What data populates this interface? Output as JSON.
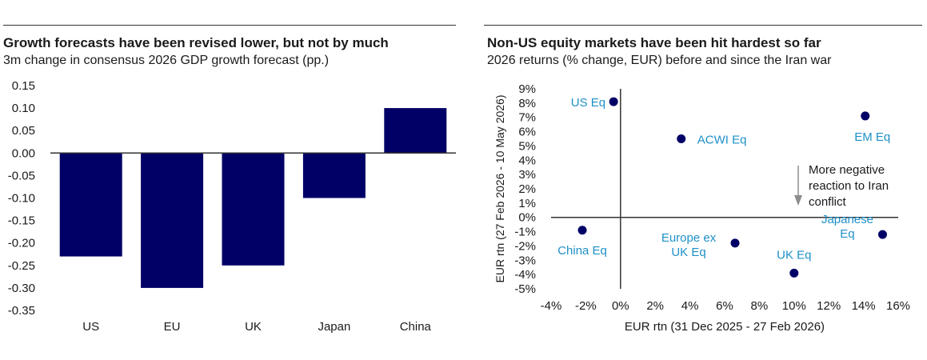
{
  "colors": {
    "bar": "#000066",
    "dot": "#000066",
    "label_blue": "#1e90c8",
    "axis": "#333333",
    "arrow": "#8c8c8c"
  },
  "chart_data": [
    {
      "type": "bar",
      "title": "Growth forecasts have been revised lower, but not by much",
      "subtitle": "3m change in consensus 2026 GDP growth forecast (pp.)",
      "categories": [
        "US",
        "EU",
        "UK",
        "Japan",
        "China"
      ],
      "values": [
        -0.23,
        -0.3,
        -0.25,
        -0.1,
        0.1
      ],
      "ylim": [
        -0.35,
        0.15
      ],
      "yticks": [
        "0.15",
        "0.10",
        "0.05",
        "0.00",
        "-0.05",
        "-0.10",
        "-0.15",
        "-0.20",
        "-0.25",
        "-0.30",
        "-0.35"
      ],
      "ytick_values": [
        0.15,
        0.1,
        0.05,
        0.0,
        -0.05,
        -0.1,
        -0.15,
        -0.2,
        -0.25,
        -0.3,
        -0.35
      ],
      "xlabel": "",
      "ylabel": "",
      "grid": false
    },
    {
      "type": "scatter",
      "title": "Non-US equity markets have been hit hardest so far",
      "subtitle": "2026 returns (% change, EUR) before and since the Iran war",
      "xlabel": "EUR rtn (31 Dec 2025 - 27 Feb 2026)",
      "ylabel": "EUR rtn (27 Feb 2026 - 10 May 2026)",
      "xlim": [
        -4,
        16
      ],
      "ylim": [
        -5,
        9
      ],
      "xticks": [
        "-4%",
        "-2%",
        "0%",
        "2%",
        "4%",
        "6%",
        "8%",
        "10%",
        "12%",
        "14%",
        "16%"
      ],
      "xtick_values": [
        -4,
        -2,
        0,
        2,
        4,
        6,
        8,
        10,
        12,
        14,
        16
      ],
      "yticks": [
        "9%",
        "8%",
        "7%",
        "6%",
        "5%",
        "4%",
        "3%",
        "2%",
        "1%",
        "0%",
        "-1%",
        "-2%",
        "-3%",
        "-4%",
        "-5%"
      ],
      "ytick_values": [
        9,
        8,
        7,
        6,
        5,
        4,
        3,
        2,
        1,
        0,
        -1,
        -2,
        -3,
        -4,
        -5
      ],
      "points": [
        {
          "name": "US Eq",
          "x": -0.4,
          "y": 8.1,
          "label": [
            "US Eq"
          ]
        },
        {
          "name": "ACWI Eq",
          "x": 3.5,
          "y": 5.5,
          "label": [
            "ACWI Eq"
          ]
        },
        {
          "name": "EM Eq",
          "x": 14.1,
          "y": 7.1,
          "label": [
            "EM Eq"
          ]
        },
        {
          "name": "China Eq",
          "x": -2.2,
          "y": -0.9,
          "label": [
            "China Eq"
          ]
        },
        {
          "name": "Europe ex UK Eq",
          "x": 6.6,
          "y": -1.8,
          "label": [
            "Europe ex",
            "UK Eq"
          ]
        },
        {
          "name": "UK Eq",
          "x": 10.0,
          "y": -3.9,
          "label": [
            "UK Eq"
          ]
        },
        {
          "name": "Japanese Eq",
          "x": 15.1,
          "y": -1.2,
          "label": [
            "Japanese",
            "Eq"
          ]
        }
      ],
      "annotation": [
        "More negative",
        "reaction to Iran",
        "conflict"
      ],
      "grid": false
    }
  ]
}
